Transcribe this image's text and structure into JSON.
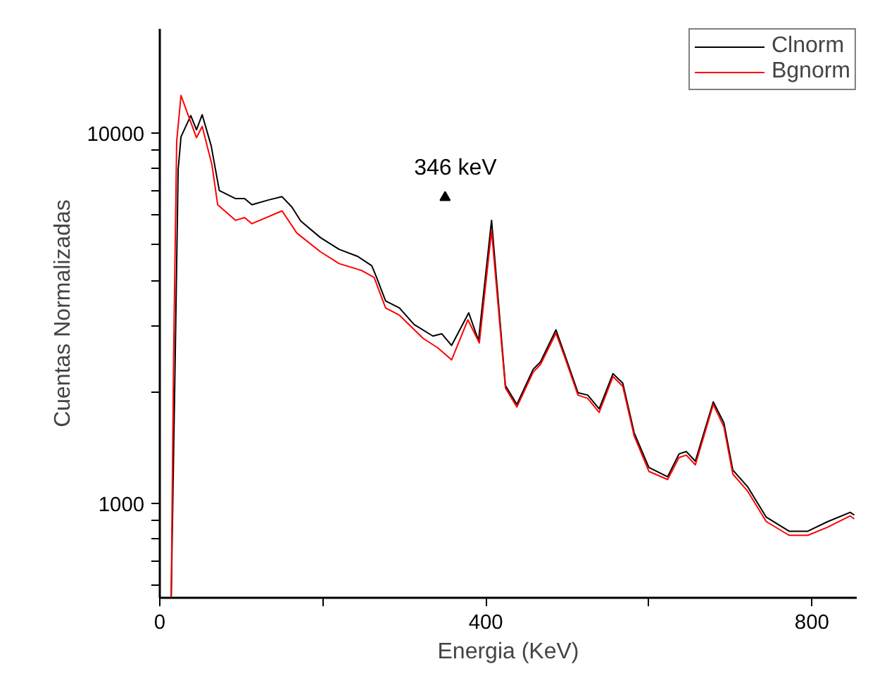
{
  "chart_data": {
    "type": "line",
    "xlabel": "Energia (KeV)",
    "ylabel": "Cuentas Normalizadas",
    "log": "y",
    "grid": false,
    "legend": "top right",
    "line_style": "solid",
    "marker": "none",
    "xlim": [
      0,
      855
    ],
    "ylim": [
      556,
      19100
    ],
    "xticks": [
      0,
      {
        "value": 200,
        "label": null
      },
      400,
      {
        "value": 600,
        "label": null
      },
      800
    ],
    "yticks": [
      {
        "value": 600,
        "label": null
      },
      {
        "value": 700,
        "label": null
      },
      {
        "value": 800,
        "label": null
      },
      {
        "value": 900,
        "label": null
      },
      1000,
      {
        "value": 2000,
        "label": null
      },
      {
        "value": 3000,
        "label": null
      },
      {
        "value": 4000,
        "label": null
      },
      {
        "value": 5000,
        "label": null
      },
      {
        "value": 6000,
        "label": null
      },
      {
        "value": 7000,
        "label": null
      },
      {
        "value": 8000,
        "label": null
      },
      {
        "value": 9000,
        "label": null
      },
      10000
    ],
    "annotations": [
      {
        "text": "346 keV",
        "x": 350,
        "y": 6700
      }
    ],
    "series": [
      {
        "name": "Clnorm",
        "color": "#000000",
        "x": [
          14,
          19,
          22.5,
          26,
          38,
          45,
          52,
          63,
          73,
          93,
          104,
          113,
          133,
          150,
          162,
          173,
          197,
          220,
          243,
          260,
          266,
          277,
          294,
          312,
          335,
          346,
          358,
          379,
          391,
          407,
          424,
          438,
          458,
          467,
          486,
          496,
          513,
          525,
          539,
          556,
          568,
          582,
          600,
          623,
          637,
          646,
          657,
          679,
          692,
          703,
          721,
          744,
          772,
          795,
          819,
          847,
          852
        ],
        "values": [
          560,
          2550,
          7960,
          9760,
          11140,
          10200,
          11200,
          9240,
          6990,
          6650,
          6650,
          6400,
          6590,
          6730,
          6310,
          5780,
          5220,
          4850,
          4640,
          4380,
          4070,
          3520,
          3370,
          3040,
          2830,
          2870,
          2670,
          3270,
          2750,
          5810,
          2080,
          1850,
          2300,
          2410,
          2940,
          2550,
          1990,
          1960,
          1800,
          2240,
          2110,
          1550,
          1250,
          1180,
          1360,
          1380,
          1300,
          1880,
          1650,
          1230,
          1110,
          918,
          841,
          841,
          892,
          946,
          930
        ]
      },
      {
        "name": "Bgnorm",
        "color": "#ff0000",
        "x": [
          14,
          17,
          20.7,
          26,
          35,
          45,
          52,
          64,
          71,
          93,
          104,
          113,
          150,
          168,
          197,
          220,
          248,
          263,
          277,
          294,
          323,
          341,
          358,
          378,
          392,
          407,
          424,
          438,
          458,
          467,
          486,
          496,
          513,
          525,
          539,
          556,
          568,
          582,
          600,
          623,
          637,
          646,
          657,
          679,
          692,
          703,
          721,
          744,
          772,
          795,
          819,
          847,
          852
        ],
        "values": [
          560,
          2550,
          9490,
          12630,
          11140,
          9710,
          10420,
          8200,
          6400,
          5810,
          5910,
          5690,
          6160,
          5370,
          4780,
          4440,
          4250,
          4070,
          3370,
          3220,
          2790,
          2630,
          2440,
          3130,
          2710,
          5450,
          2050,
          1820,
          2260,
          2370,
          2880,
          2510,
          1960,
          1920,
          1760,
          2200,
          2070,
          1520,
          1220,
          1160,
          1330,
          1350,
          1270,
          1850,
          1610,
          1200,
          1080,
          893,
          820,
          820,
          862,
          925,
          908
        ]
      }
    ]
  }
}
